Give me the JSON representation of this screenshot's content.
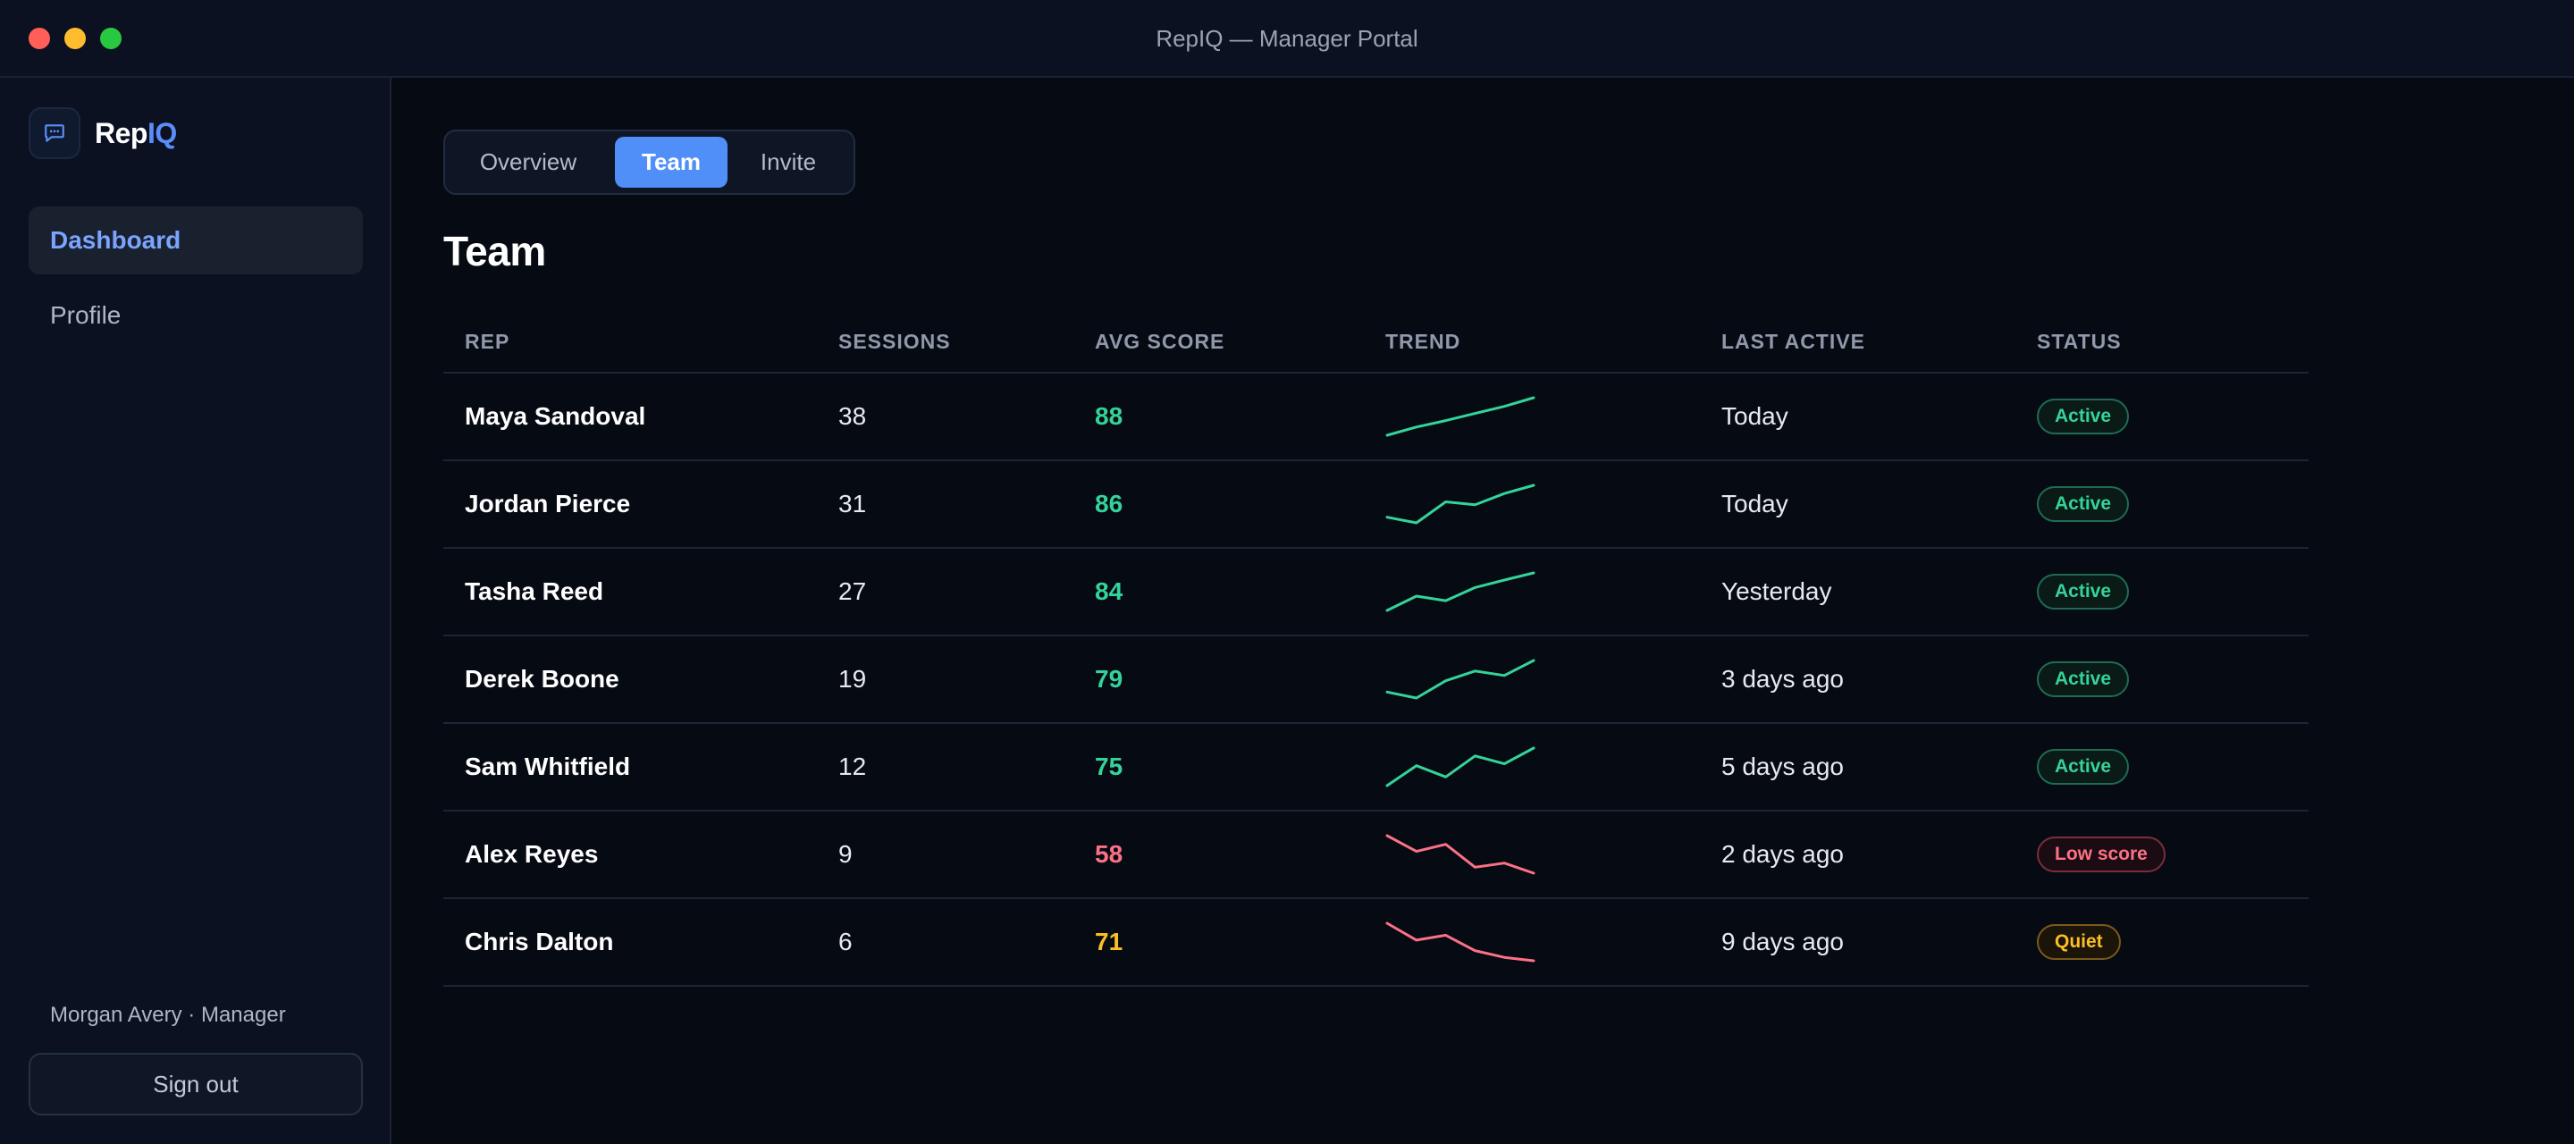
{
  "window": {
    "title": "RepIQ — Manager Portal"
  },
  "sidebar": {
    "brand": {
      "name_main": "Rep",
      "name_accent": "IQ",
      "logo_icon": "chat-bubble-icon"
    },
    "nav": [
      {
        "label": "Dashboard",
        "active": true
      },
      {
        "label": "Profile",
        "active": false
      }
    ],
    "user": "Morgan Avery · Manager",
    "signout_label": "Sign out"
  },
  "tabs": [
    {
      "label": "Overview",
      "active": false
    },
    {
      "label": "Team",
      "active": true
    },
    {
      "label": "Invite",
      "active": false
    }
  ],
  "page_title": "Team",
  "table": {
    "columns": [
      "REP",
      "SESSIONS",
      "AVG SCORE",
      "TREND",
      "LAST ACTIVE",
      "STATUS"
    ],
    "rows": [
      {
        "rep": "Maya Sandoval",
        "sessions": "38",
        "score": "88",
        "score_tone": "green",
        "trend": [
          0.0,
          0.22,
          0.39,
          0.58,
          0.77,
          1.0
        ],
        "trend_tone": "green",
        "last_active": "Today",
        "status": "Active",
        "status_tone": "green"
      },
      {
        "rep": "Jordan Pierce",
        "sessions": "31",
        "score": "86",
        "score_tone": "green",
        "trend": [
          0.15,
          0.0,
          0.56,
          0.48,
          0.78,
          1.0
        ],
        "trend_tone": "green",
        "last_active": "Today",
        "status": "Active",
        "status_tone": "green"
      },
      {
        "rep": "Tasha Reed",
        "sessions": "27",
        "score": "84",
        "score_tone": "green",
        "trend": [
          0.0,
          0.38,
          0.26,
          0.61,
          0.81,
          1.0
        ],
        "trend_tone": "green",
        "last_active": "Yesterday",
        "status": "Active",
        "status_tone": "green"
      },
      {
        "rep": "Derek Boone",
        "sessions": "19",
        "score": "79",
        "score_tone": "green",
        "trend": [
          0.16,
          0.0,
          0.46,
          0.72,
          0.6,
          1.0
        ],
        "trend_tone": "green",
        "last_active": "3 days ago",
        "status": "Active",
        "status_tone": "green"
      },
      {
        "rep": "Sam Whitfield",
        "sessions": "12",
        "score": "75",
        "score_tone": "green",
        "trend": [
          0.0,
          0.53,
          0.23,
          0.79,
          0.58,
          1.0
        ],
        "trend_tone": "green",
        "last_active": "5 days ago",
        "status": "Active",
        "status_tone": "green"
      },
      {
        "rep": "Alex Reyes",
        "sessions": "9",
        "score": "58",
        "score_tone": "red",
        "trend": [
          1.0,
          0.58,
          0.77,
          0.16,
          0.27,
          0.0
        ],
        "trend_tone": "red",
        "last_active": "2 days ago",
        "status": "Low score",
        "status_tone": "red"
      },
      {
        "rep": "Chris Dalton",
        "sessions": "6",
        "score": "71",
        "score_tone": "amber",
        "trend": [
          1.0,
          0.55,
          0.68,
          0.27,
          0.09,
          0.0
        ],
        "trend_tone": "red",
        "last_active": "9 days ago",
        "status": "Quiet",
        "status_tone": "amber"
      }
    ]
  },
  "colors": {
    "green": "#34d399",
    "red": "#fb7185",
    "amber": "#fbbf24",
    "accent": "#4f8ff7"
  }
}
